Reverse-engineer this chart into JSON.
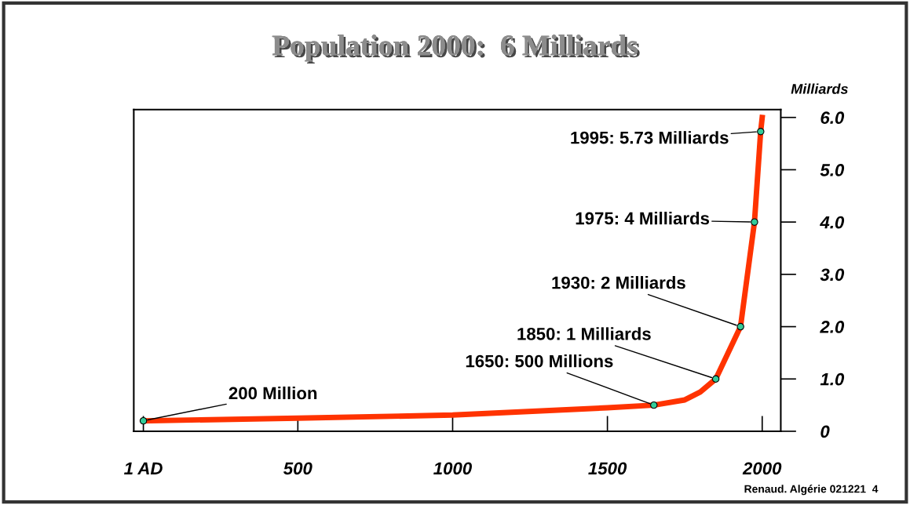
{
  "chart_data": {
    "type": "line",
    "title": "Population 2000:  6 Milliards",
    "ylabel": "Milliards",
    "x": [
      1,
      500,
      1000,
      1500,
      1650,
      1750,
      1800,
      1850,
      1930,
      1975,
      1995,
      2000
    ],
    "series": [
      {
        "color": "#ff3300",
        "marker": "none",
        "values": [
          0.2,
          0.25,
          0.31,
          0.45,
          0.5,
          0.6,
          0.75,
          1.0,
          2.0,
          4.0,
          5.73,
          6.0
        ]
      },
      {
        "type": "scatter",
        "color": "#33cc99",
        "marker": "circle",
        "x": [
          1,
          1650,
          1850,
          1930,
          1975,
          1995
        ],
        "values": [
          0.2,
          0.5,
          1.0,
          2.0,
          4.0,
          5.73
        ]
      }
    ],
    "xlim": [
      -30,
      2060
    ],
    "ylim": [
      0,
      6.15
    ],
    "xticks": [
      {
        "value": 1,
        "label": "1 AD"
      },
      500,
      1000,
      1500,
      2000
    ],
    "yticks": [
      0,
      {
        "value": 1,
        "label": "1.0"
      },
      {
        "value": 2,
        "label": "2.0"
      },
      {
        "value": 3,
        "label": "3.0"
      },
      {
        "value": 4,
        "label": "4.0"
      },
      {
        "value": 5,
        "label": "5.0"
      },
      {
        "value": 6,
        "label": "6.0"
      }
    ],
    "grid": false,
    "legend": false,
    "annotations": [
      {
        "text": "200 Million",
        "x": 1,
        "y": 0.2
      },
      {
        "text": "1650: 500 Millions",
        "x": 1650,
        "y": 0.5
      },
      {
        "text": "1850: 1 Milliards",
        "x": 1850,
        "y": 1.0
      },
      {
        "text": "1930: 2 Milliards",
        "x": 1930,
        "y": 2.0
      },
      {
        "text": "1975: 4 Milliards",
        "x": 1975,
        "y": 4.0
      },
      {
        "text": "1995: 5.73 Milliards",
        "x": 1995,
        "y": 5.73
      },
      "Renaud. Algérie 021221  4"
    ]
  }
}
